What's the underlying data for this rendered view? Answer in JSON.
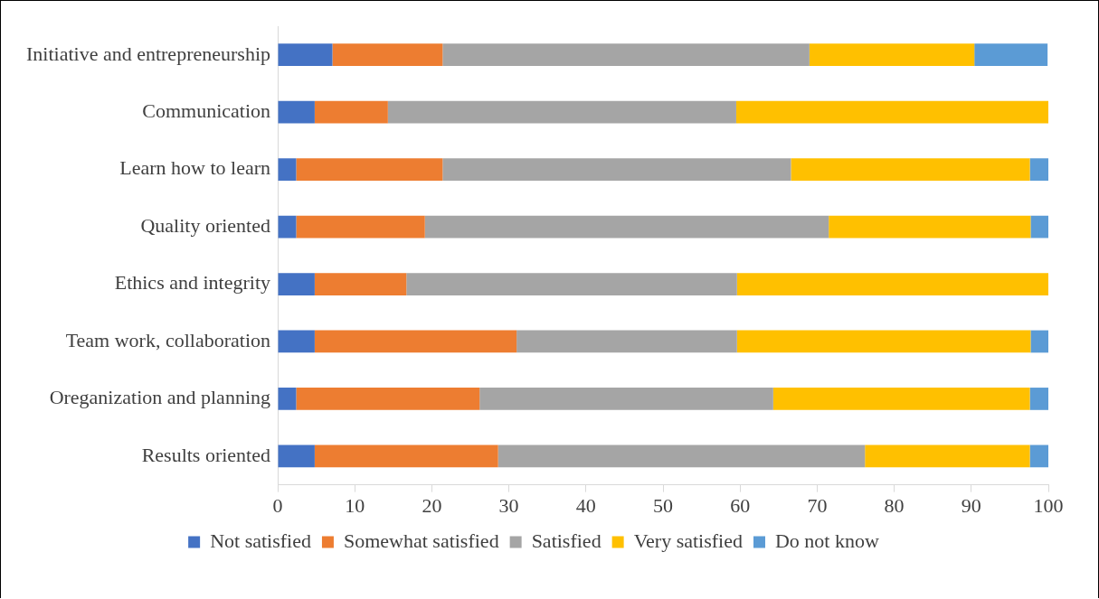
{
  "chart_data": {
    "type": "bar",
    "orientation": "horizontal",
    "stacked": true,
    "categories": [
      "Initiative and entrepreneurship",
      "Communication",
      "Learn how to learn",
      "Quality oriented",
      "Ethics and integrity",
      "Team work, collaboration",
      "Oreganization and planning",
      "Results oriented"
    ],
    "series": [
      {
        "name": "Not satisfied",
        "color": "#4472c4",
        "values": [
          7.1,
          4.8,
          2.4,
          2.4,
          4.8,
          4.8,
          2.4,
          4.8
        ]
      },
      {
        "name": "Somewhat satisfied",
        "color": "#ed7d31",
        "values": [
          14.3,
          9.5,
          19.0,
          16.7,
          11.9,
          26.2,
          23.8,
          23.8
        ]
      },
      {
        "name": "Satisfied",
        "color": "#a5a5a5",
        "values": [
          47.6,
          45.2,
          45.2,
          52.4,
          42.9,
          28.6,
          38.1,
          47.6
        ]
      },
      {
        "name": "Very satisfied",
        "color": "#ffc000",
        "values": [
          21.4,
          40.5,
          31.0,
          26.2,
          40.5,
          38.1,
          33.3,
          21.4
        ]
      },
      {
        "name": "Do not know",
        "color": "#5b9bd5",
        "values": [
          9.5,
          0,
          2.4,
          2.4,
          0,
          2.4,
          2.4,
          2.4
        ]
      }
    ],
    "xlim": [
      0,
      100
    ],
    "xticks": [
      0,
      10,
      20,
      30,
      40,
      50,
      60,
      70,
      80,
      90,
      100
    ],
    "grid": false,
    "legend": "bottom"
  }
}
